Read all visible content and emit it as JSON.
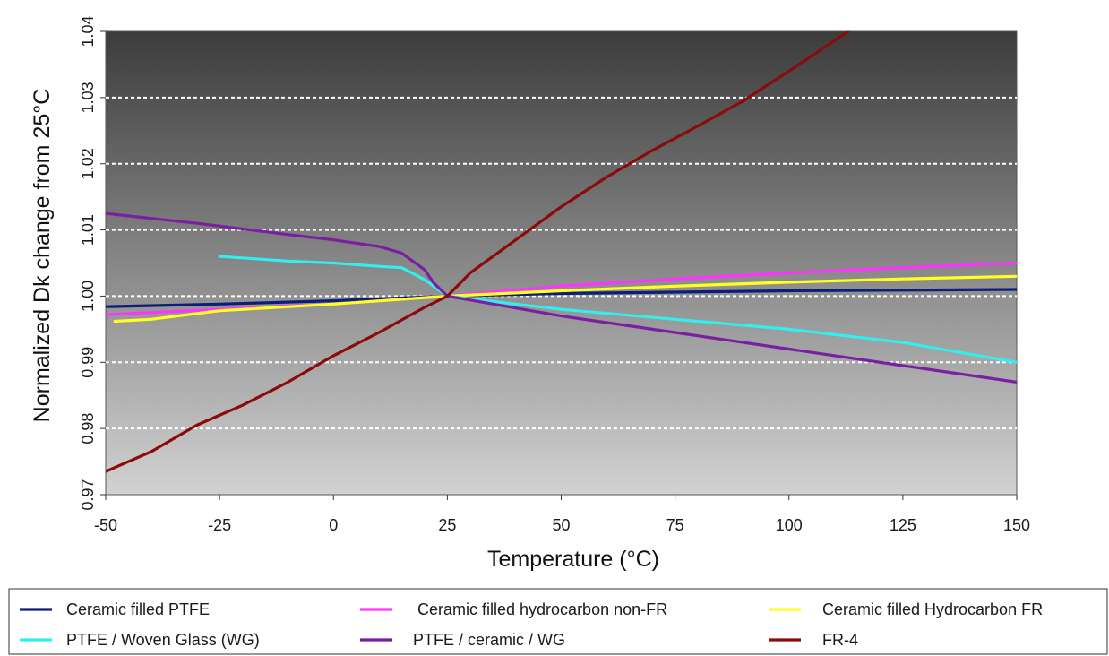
{
  "chart_data": {
    "type": "line",
    "title": "",
    "xlabel": "Temperature (",
    "xlabel_unit": "°C)",
    "ylabel": "Normalized Dk change from 25",
    "ylabel_unit": "°C",
    "xlim": [
      -50,
      150
    ],
    "ylim": [
      0.97,
      1.04
    ],
    "x_ticks": [
      -50,
      -25,
      0,
      25,
      50,
      75,
      100,
      125,
      150
    ],
    "x_tick_labels": [
      "-50",
      "-25",
      "0",
      "25",
      "50",
      "75",
      "100",
      "125",
      "150"
    ],
    "y_ticks": [
      0.97,
      0.98,
      0.99,
      1.0,
      1.01,
      1.02,
      1.03,
      1.04
    ],
    "y_tick_labels": [
      "0.97",
      "0.98",
      "0.99",
      "1.00",
      "1.01",
      "1.02",
      "1.03",
      "1.04"
    ],
    "grid": "horizontal-dashed",
    "legend_position": "bottom",
    "series": [
      {
        "name": "Ceramic filled PTFE",
        "color": "#0b1e7a",
        "x": [
          -50,
          -25,
          0,
          25,
          50,
          75,
          100,
          125,
          150
        ],
        "y": [
          0.9984,
          0.9988,
          0.9993,
          1.0,
          1.0004,
          1.0006,
          1.0008,
          1.0009,
          1.001
        ]
      },
      {
        "name": "Ceramic filled hydrocarbon non-FR",
        "color": "#ff33ff",
        "x": [
          -50,
          -25,
          0,
          25,
          50,
          75,
          100,
          125,
          150
        ],
        "y": [
          0.9972,
          0.998,
          0.9988,
          1.0,
          1.0015,
          1.0026,
          1.0035,
          1.0043,
          1.005
        ]
      },
      {
        "name": "Ceramic filled Hydrocarbon FR",
        "color": "#ffff22",
        "x": [
          -48,
          -40,
          -25,
          0,
          25,
          50,
          75,
          100,
          125,
          150
        ],
        "y": [
          0.9962,
          0.9965,
          0.9978,
          0.9988,
          1.0,
          1.0008,
          1.0015,
          1.0021,
          1.0026,
          1.003
        ]
      },
      {
        "name": "PTFE / Woven Glass (WG)",
        "color": "#33eeee",
        "x": [
          -25,
          -10,
          0,
          10,
          15,
          20,
          25,
          50,
          75,
          100,
          125,
          150
        ],
        "y": [
          1.006,
          1.0053,
          1.005,
          1.0045,
          1.0043,
          1.0025,
          1.0,
          0.998,
          0.9965,
          0.995,
          0.993,
          0.99
        ]
      },
      {
        "name": "PTFE / ceramic / WG",
        "color": "#7b1fa2",
        "x": [
          -50,
          -30,
          -10,
          0,
          10,
          15,
          20,
          22,
          25,
          50,
          75,
          100,
          125,
          150
        ],
        "y": [
          1.0125,
          1.011,
          1.0093,
          1.0085,
          1.0075,
          1.0065,
          1.004,
          1.002,
          1.0,
          0.997,
          0.9945,
          0.992,
          0.9895,
          0.987
        ]
      },
      {
        "name": "FR-4",
        "color": "#8b0a0a",
        "x": [
          -50,
          -40,
          -30,
          -20,
          -10,
          0,
          10,
          20,
          25,
          30,
          40,
          50,
          60,
          70,
          80,
          90,
          100,
          113
        ],
        "y": [
          0.9735,
          0.9765,
          0.9805,
          0.9835,
          0.987,
          0.991,
          0.9945,
          0.9983,
          1.0,
          1.0035,
          1.0085,
          1.0135,
          1.018,
          1.022,
          1.0257,
          1.0295,
          1.034,
          1.04
        ]
      }
    ]
  }
}
